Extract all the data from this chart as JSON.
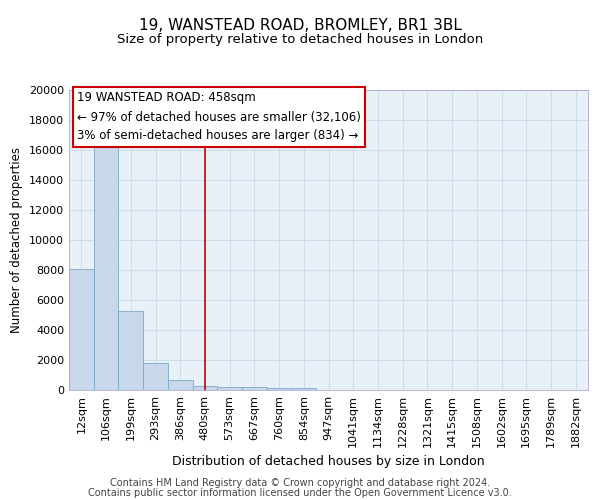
{
  "title1": "19, WANSTEAD ROAD, BROMLEY, BR1 3BL",
  "title2": "Size of property relative to detached houses in London",
  "xlabel": "Distribution of detached houses by size in London",
  "ylabel": "Number of detached properties",
  "categories": [
    "12sqm",
    "106sqm",
    "199sqm",
    "293sqm",
    "386sqm",
    "480sqm",
    "573sqm",
    "667sqm",
    "760sqm",
    "854sqm",
    "947sqm",
    "1041sqm",
    "1134sqm",
    "1228sqm",
    "1321sqm",
    "1415sqm",
    "1508sqm",
    "1602sqm",
    "1695sqm",
    "1789sqm",
    "1882sqm"
  ],
  "values": [
    8100,
    16600,
    5300,
    1800,
    700,
    300,
    220,
    200,
    160,
    110,
    0,
    0,
    0,
    0,
    0,
    0,
    0,
    0,
    0,
    0,
    0
  ],
  "bar_color": "#c8d8ea",
  "bar_edge_color": "#7aaac8",
  "grid_color": "#d0dcea",
  "bg_color": "#e8f0f8",
  "vline_x_index": 5,
  "vline_color": "#cc0000",
  "annotation_line1": "19 WANSTEAD ROAD: 458sqm",
  "annotation_line2": "← 97% of detached houses are smaller (32,106)",
  "annotation_line3": "3% of semi-detached houses are larger (834) →",
  "annotation_box_color": "#cc0000",
  "ylim": [
    0,
    20000
  ],
  "yticks": [
    0,
    2000,
    4000,
    6000,
    8000,
    10000,
    12000,
    14000,
    16000,
    18000,
    20000
  ],
  "footnote1": "Contains HM Land Registry data © Crown copyright and database right 2024.",
  "footnote2": "Contains public sector information licensed under the Open Government Licence v3.0.",
  "title1_fontsize": 11,
  "title2_fontsize": 9.5,
  "xlabel_fontsize": 9,
  "ylabel_fontsize": 8.5,
  "tick_fontsize": 8,
  "annotation_fontsize": 8.5,
  "footnote_fontsize": 7
}
